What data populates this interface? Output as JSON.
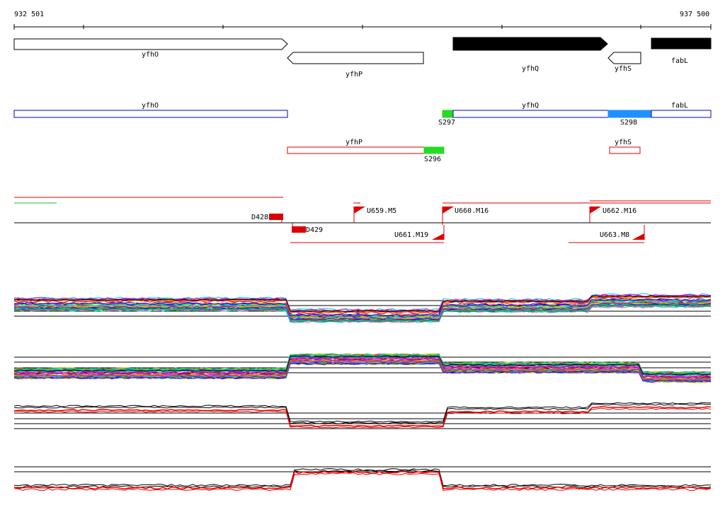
{
  "coordinates": {
    "start": "932 501",
    "end": "937 500"
  },
  "genes_track": [
    {
      "name": "yfhO",
      "strand": "+",
      "filled": false
    },
    {
      "name": "yfhP",
      "strand": "-",
      "filled": false
    },
    {
      "name": "yfhQ",
      "strand": "+",
      "filled": true
    },
    {
      "name": "yfhS",
      "strand": "-",
      "filled": false
    },
    {
      "name": "fabL",
      "strand": "+",
      "filled": true
    }
  ],
  "forward_transcripts": [
    {
      "label": "yfhO",
      "color": "#0000cc"
    },
    {
      "label": "yfhQ",
      "color": "#0000cc"
    },
    {
      "label": "fabL",
      "color": "#0000cc"
    }
  ],
  "forward_segments": [
    {
      "label": "S297",
      "color": "#22dd22"
    },
    {
      "label": "S298",
      "color": "#1e90ff"
    }
  ],
  "reverse_transcripts": [
    {
      "label": "yfhP",
      "color": "#dd0000"
    },
    {
      "label": "yfhS",
      "color": "#dd0000"
    }
  ],
  "reverse_segments": [
    {
      "label": "S296",
      "color": "#22dd22"
    }
  ],
  "downshifts": [
    "D428",
    "D429"
  ],
  "upshifts": [
    "U659.M5",
    "U660.M16",
    "U661.M19",
    "U662.M16",
    "U663.M8"
  ],
  "colors": {
    "forward": "#0000cc",
    "reverse": "#dd0000",
    "green": "#22dd22",
    "blue": "#1e90ff",
    "profile_main": "#000000",
    "profile_alt": "#ee0000"
  }
}
